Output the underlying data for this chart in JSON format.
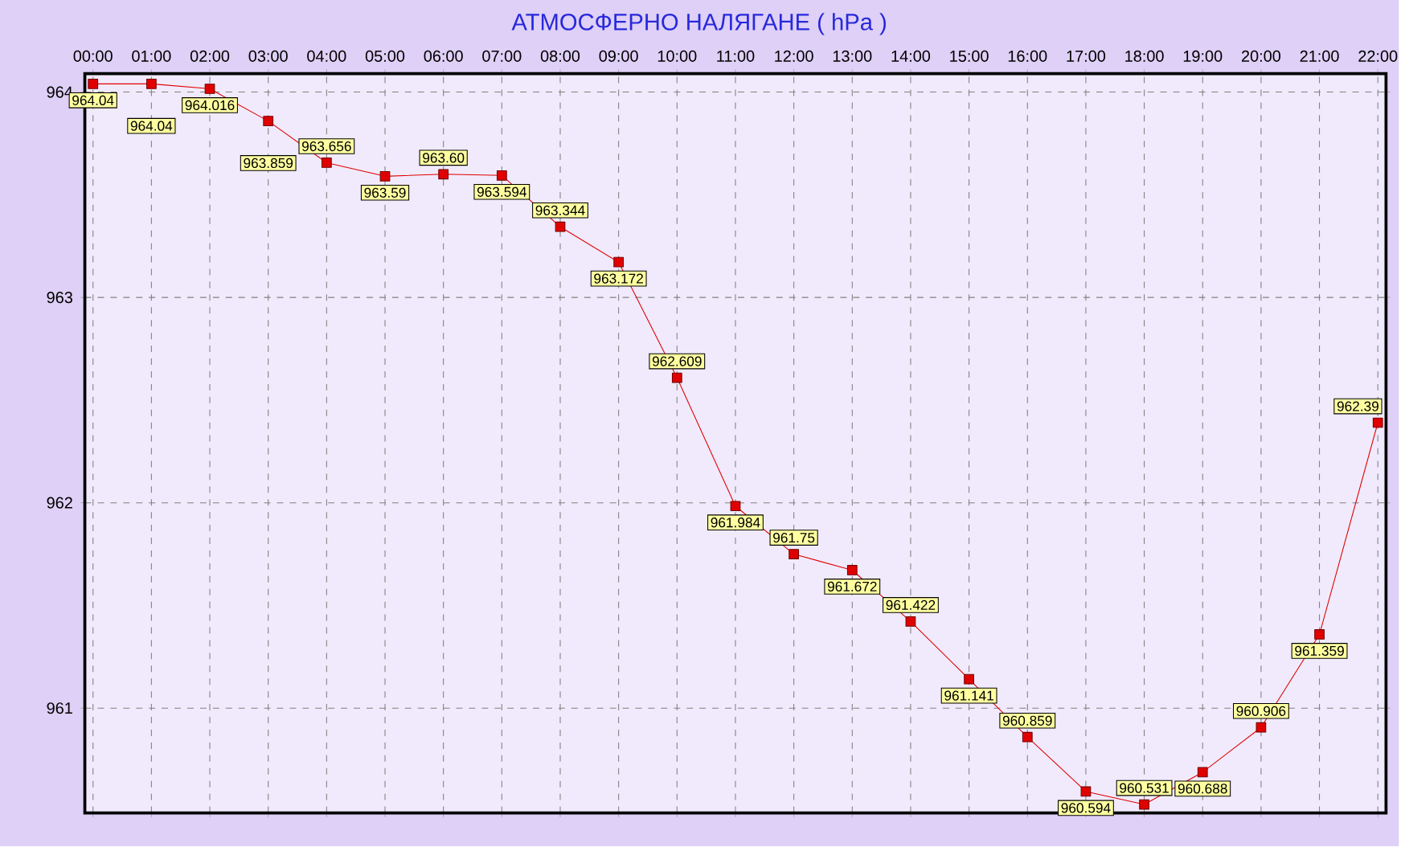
{
  "chart_data": {
    "type": "line",
    "title": "АТМОСФЕРНО НАЛЯГАНЕ  ( hPa )",
    "categories": [
      "00:00",
      "01:00",
      "02:00",
      "03:00",
      "04:00",
      "05:00",
      "06:00",
      "07:00",
      "08:00",
      "09:00",
      "10:00",
      "11:00",
      "12:00",
      "13:00",
      "14:00",
      "15:00",
      "16:00",
      "17:00",
      "18:00",
      "19:00",
      "20:00",
      "21:00",
      "22:00"
    ],
    "values": [
      964.04,
      964.04,
      964.016,
      963.859,
      963.656,
      963.59,
      963.6,
      963.594,
      963.344,
      963.172,
      962.609,
      961.984,
      961.75,
      961.672,
      961.422,
      961.141,
      960.859,
      960.594,
      960.531,
      960.688,
      960.906,
      961.359,
      962.39
    ],
    "value_labels": [
      "964.04",
      "964.04",
      "964.016",
      "963.859",
      "963.656",
      "963.59",
      "963.60",
      "963.594",
      "963.344",
      "963.172",
      "962.609",
      "961.984",
      "961.75",
      "961.672",
      "961.422",
      "961.141",
      "960.859",
      "960.594",
      "960.531",
      "960.688",
      "960.906",
      "961.359",
      "962.39"
    ],
    "color": "#e00000",
    "ylim": [
      960.49,
      964.09
    ],
    "yticks": [
      961,
      962,
      963,
      964
    ],
    "grid": true,
    "marker": "square",
    "line_style": "solid"
  }
}
